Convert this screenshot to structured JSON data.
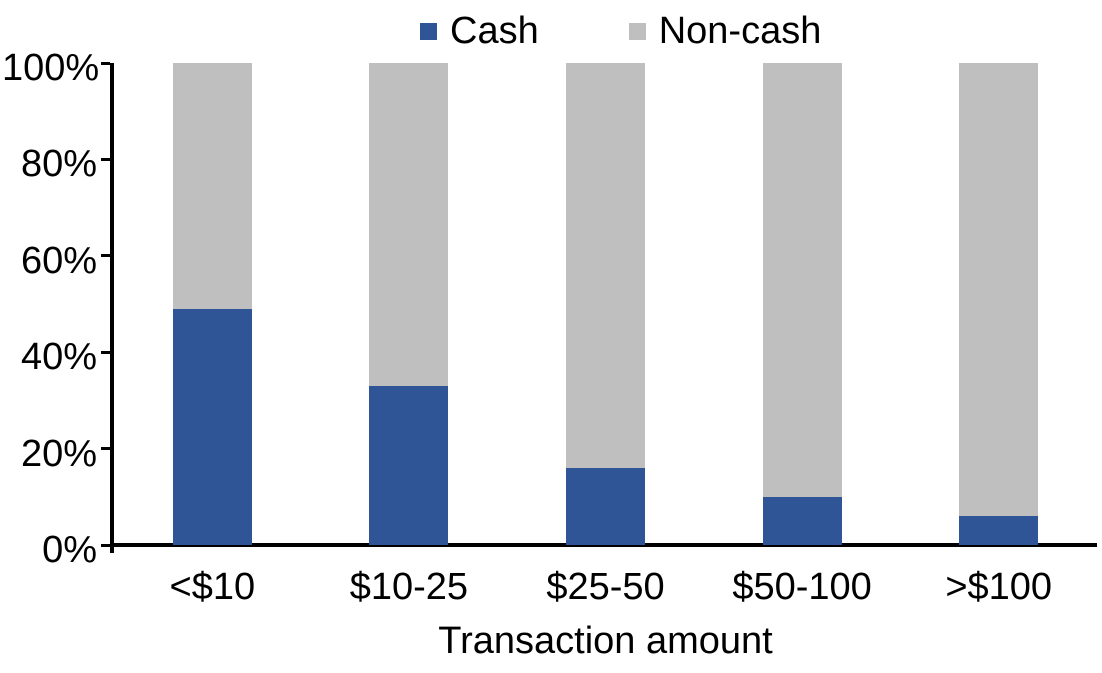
{
  "chart_data": {
    "type": "bar",
    "stacked": true,
    "percent_stacked": true,
    "title": "",
    "xlabel": "Transaction amount",
    "ylabel": "",
    "categories": [
      "<$10",
      "$10-25",
      "$25-50",
      "$50-100",
      ">$100"
    ],
    "series": [
      {
        "name": "Cash",
        "color": "#2F5597",
        "values": [
          49,
          33,
          16,
          10,
          6
        ]
      },
      {
        "name": "Non-cash",
        "color": "#BFBFBF",
        "values": [
          51,
          67,
          84,
          90,
          94
        ]
      }
    ],
    "y_axis": {
      "min": 0,
      "max": 100,
      "tick_labels": [
        "0%",
        "20%",
        "40%",
        "60%",
        "80%",
        "100%"
      ]
    },
    "legend_position": "top",
    "gridlines": "none",
    "axis_color": "#000000",
    "text_color": "#000000",
    "background_color": "#FFFFFF"
  }
}
